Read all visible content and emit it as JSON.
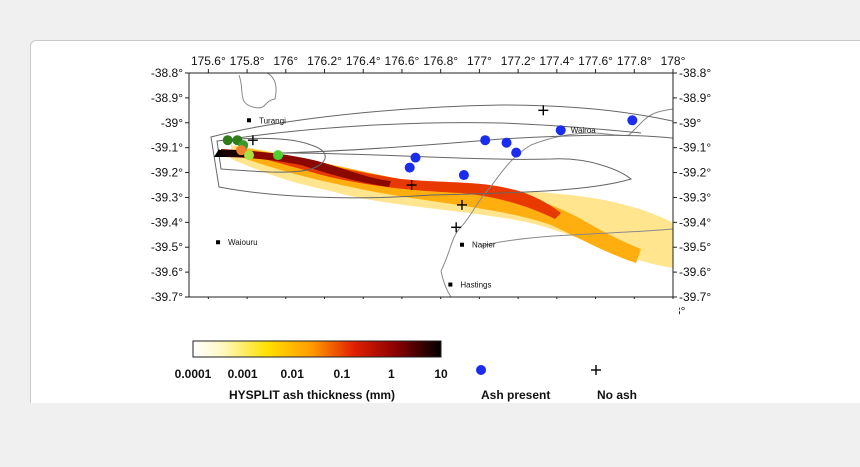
{
  "map": {
    "lon_ticks": [
      "175.6°",
      "175.8°",
      "176°",
      "176.2°",
      "176.4°",
      "176.6°",
      "176.8°",
      "177°",
      "177.2°",
      "177.4°",
      "177.6°",
      "177.8°",
      "178°"
    ],
    "lat_ticks": [
      "-38.8°",
      "-38.9°",
      "-39°",
      "-39.1°",
      "-39.2°",
      "-39.3°",
      "-39.4°",
      "-39.5°",
      "-39.6°",
      "-39.7°"
    ],
    "places": [
      {
        "name": "Turangi",
        "lon": 175.81,
        "lat": -38.99
      },
      {
        "name": "Waiouru",
        "lon": 175.65,
        "lat": -39.48
      },
      {
        "name": "Napier",
        "lon": 176.91,
        "lat": -39.49
      },
      {
        "name": "Hastings",
        "lon": 176.85,
        "lat": -39.65
      },
      {
        "name": "Wairoa",
        "lon": 177.42,
        "lat": -39.03
      }
    ],
    "ash_present_points": [
      {
        "lon": 177.79,
        "lat": -38.99
      },
      {
        "lon": 177.42,
        "lat": -39.03
      },
      {
        "lon": 177.03,
        "lat": -39.07
      },
      {
        "lon": 177.14,
        "lat": -39.08
      },
      {
        "lon": 177.19,
        "lat": -39.12
      },
      {
        "lon": 176.67,
        "lat": -39.14
      },
      {
        "lon": 176.64,
        "lat": -39.18
      },
      {
        "lon": 176.92,
        "lat": -39.21
      }
    ],
    "no_ash_points": [
      {
        "lon": 177.33,
        "lat": -38.95
      },
      {
        "lon": 175.83,
        "lat": -39.07
      },
      {
        "lon": 176.65,
        "lat": -39.25
      },
      {
        "lon": 176.91,
        "lat": -39.33
      },
      {
        "lon": 176.88,
        "lat": -39.42
      }
    ],
    "source_points": [
      {
        "color": "#2e7d1a",
        "lon": 175.7,
        "lat": -39.07
      },
      {
        "color": "#2e7d1a",
        "lon": 175.75,
        "lat": -39.07
      },
      {
        "color": "#3a9a28",
        "lon": 175.78,
        "lat": -39.09
      },
      {
        "color": "#f08030",
        "lon": 175.77,
        "lat": -39.11
      },
      {
        "color": "#4fcf30",
        "lon": 175.96,
        "lat": -39.13
      },
      {
        "color": "#a8e040",
        "lon": 175.81,
        "lat": -39.13
      }
    ]
  },
  "legend": {
    "colorbar_ticks": [
      "0.0001",
      "0.001",
      "0.01",
      "0.1",
      "1",
      "10"
    ],
    "colorbar_title": "HYSPLIT ash thickness (mm)",
    "ash_present_label": "Ash present",
    "no_ash_label": "No ash"
  },
  "colors": {
    "ash_present": "#1a2cf0",
    "no_ash": "#000000"
  }
}
